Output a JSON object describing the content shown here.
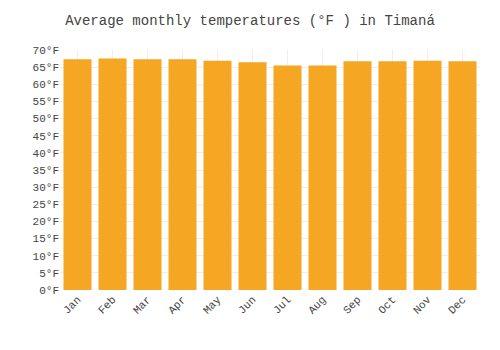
{
  "chart_data": {
    "type": "bar",
    "title": "Average monthly temperatures (°F ) in Timaná",
    "categories": [
      "Jan",
      "Feb",
      "Mar",
      "Apr",
      "May",
      "Jun",
      "Jul",
      "Aug",
      "Sep",
      "Oct",
      "Nov",
      "Dec"
    ],
    "values": [
      67.3,
      67.5,
      67.3,
      67.3,
      66.9,
      66.4,
      65.5,
      65.5,
      66.7,
      66.7,
      66.9,
      66.7
    ],
    "color": "#F5A623",
    "ylim": [
      0,
      70
    ],
    "yticks": [
      {
        "value": 0,
        "label": "0°F"
      },
      {
        "value": 5,
        "label": "5°F"
      },
      {
        "value": 10,
        "label": "10°F"
      },
      {
        "value": 15,
        "label": "15°F"
      },
      {
        "value": 20,
        "label": "20°F"
      },
      {
        "value": 25,
        "label": "25°F"
      },
      {
        "value": 30,
        "label": "30°F"
      },
      {
        "value": 35,
        "label": "35°F"
      },
      {
        "value": 40,
        "label": "40°F"
      },
      {
        "value": 45,
        "label": "45°F"
      },
      {
        "value": 50,
        "label": "50°F"
      },
      {
        "value": 55,
        "label": "55°F"
      },
      {
        "value": 60,
        "label": "60°F"
      },
      {
        "value": 65,
        "label": "65°F"
      },
      {
        "value": 70,
        "label": "70°F"
      }
    ],
    "grid": true
  }
}
